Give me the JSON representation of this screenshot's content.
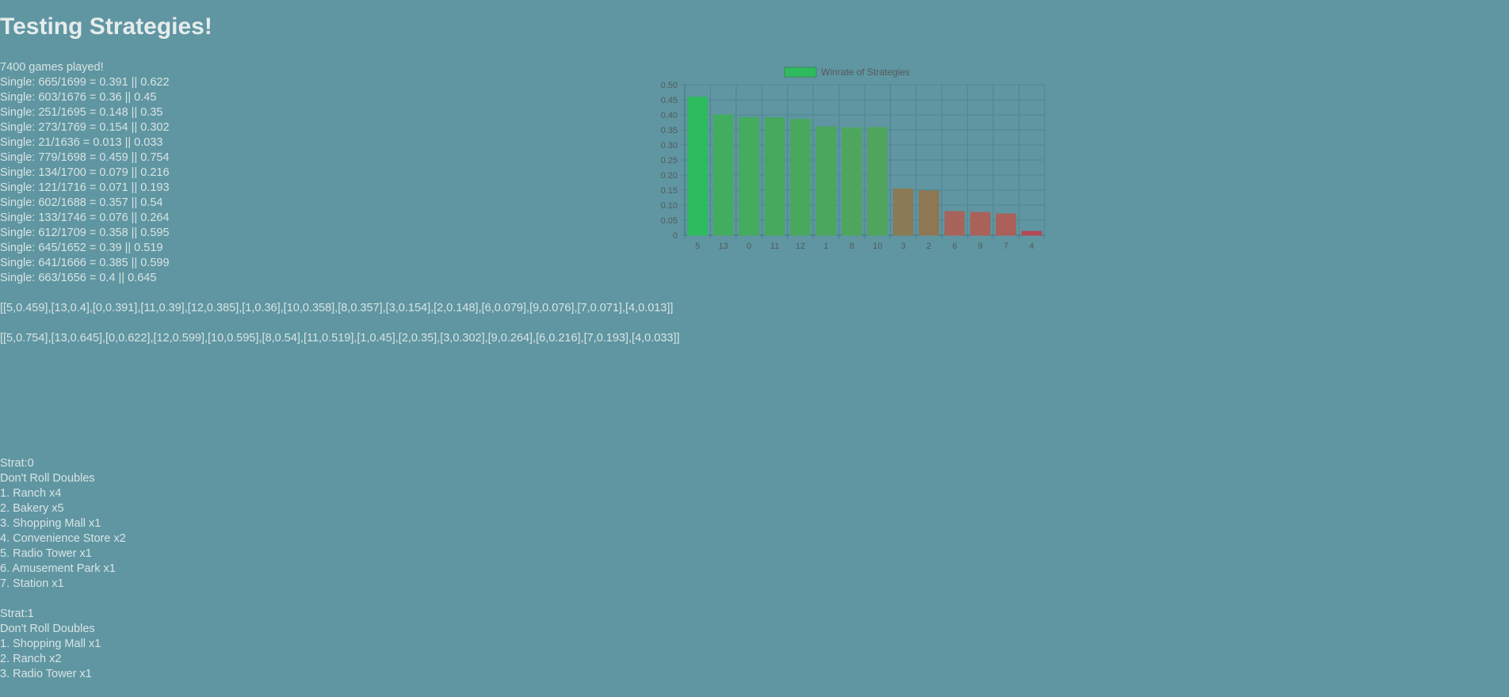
{
  "page": {
    "title": "Testing Strategies!"
  },
  "stats": {
    "games_played": "7400 games played!",
    "lines": [
      "Single: 665/1699 = 0.391 || 0.622",
      "Single: 603/1676 = 0.36 || 0.45",
      "Single: 251/1695 = 0.148 || 0.35",
      "Single: 273/1769 = 0.154 || 0.302",
      "Single: 21/1636 = 0.013 || 0.033",
      "Single: 779/1698 = 0.459 || 0.754",
      "Single: 134/1700 = 0.079 || 0.216",
      "Single: 121/1716 = 0.071 || 0.193",
      "Single: 602/1688 = 0.357 || 0.54",
      "Single: 133/1746 = 0.076 || 0.264",
      "Single: 612/1709 = 0.358 || 0.595",
      "Single: 645/1652 = 0.39 || 0.519",
      "Single: 641/1666 = 0.385 || 0.599",
      "Single: 663/1656 = 0.4 || 0.645"
    ]
  },
  "rankings": {
    "winrate": "[[5,0.459],[13,0.4],[0,0.391],[11,0.39],[12,0.385],[1,0.36],[10,0.358],[8,0.357],[3,0.154],[2,0.148],[6,0.079],[9,0.076],[7,0.071],[4,0.013]]",
    "secondary": "[[5,0.754],[13,0.645],[0,0.622],[12,0.599],[10,0.595],[8,0.54],[11,0.519],[1,0.45],[2,0.35],[3,0.302],[9,0.264],[6,0.216],[7,0.193],[4,0.033]]"
  },
  "strategies": [
    {
      "header": "Strat:0",
      "rule": "Don't Roll Doubles",
      "items": [
        "1. Ranch x4",
        "2. Bakery x5",
        "3. Shopping Mall x1",
        "4. Convenience Store x2",
        "5. Radio Tower x1",
        "6. Amusement Park x1",
        "7. Station x1"
      ]
    },
    {
      "header": "Strat:1",
      "rule": "Don't Roll Doubles",
      "items": [
        "1. Shopping Mall x1",
        "2. Ranch x2",
        "3. Radio Tower x1"
      ]
    }
  ],
  "chart_data": {
    "type": "bar",
    "title": "",
    "xlabel": "",
    "ylabel": "",
    "legend": {
      "position": "top",
      "label": "Winrate of Strategies",
      "swatch_color": "#2ebb5e"
    },
    "grid": true,
    "ylim": [
      0,
      0.5
    ],
    "yticks": [
      "0",
      "0.05",
      "0.10",
      "0.15",
      "0.20",
      "0.25",
      "0.30",
      "0.35",
      "0.40",
      "0.45",
      "0.50"
    ],
    "categories": [
      "5",
      "13",
      "0",
      "11",
      "12",
      "1",
      "8",
      "10",
      "3",
      "2",
      "6",
      "9",
      "7",
      "4"
    ],
    "values": [
      0.459,
      0.4,
      0.391,
      0.39,
      0.385,
      0.36,
      0.357,
      0.358,
      0.154,
      0.148,
      0.079,
      0.076,
      0.071,
      0.013
    ],
    "colors": [
      "#2ebb5e",
      "#43ad5f",
      "#45ab5f",
      "#47a95e",
      "#49a85e",
      "#4ba65e",
      "#4ea65e",
      "#4fa55e",
      "#8a7a55",
      "#8d7754",
      "#a8645a",
      "#a9625a",
      "#ab605a",
      "#b44a55"
    ]
  }
}
